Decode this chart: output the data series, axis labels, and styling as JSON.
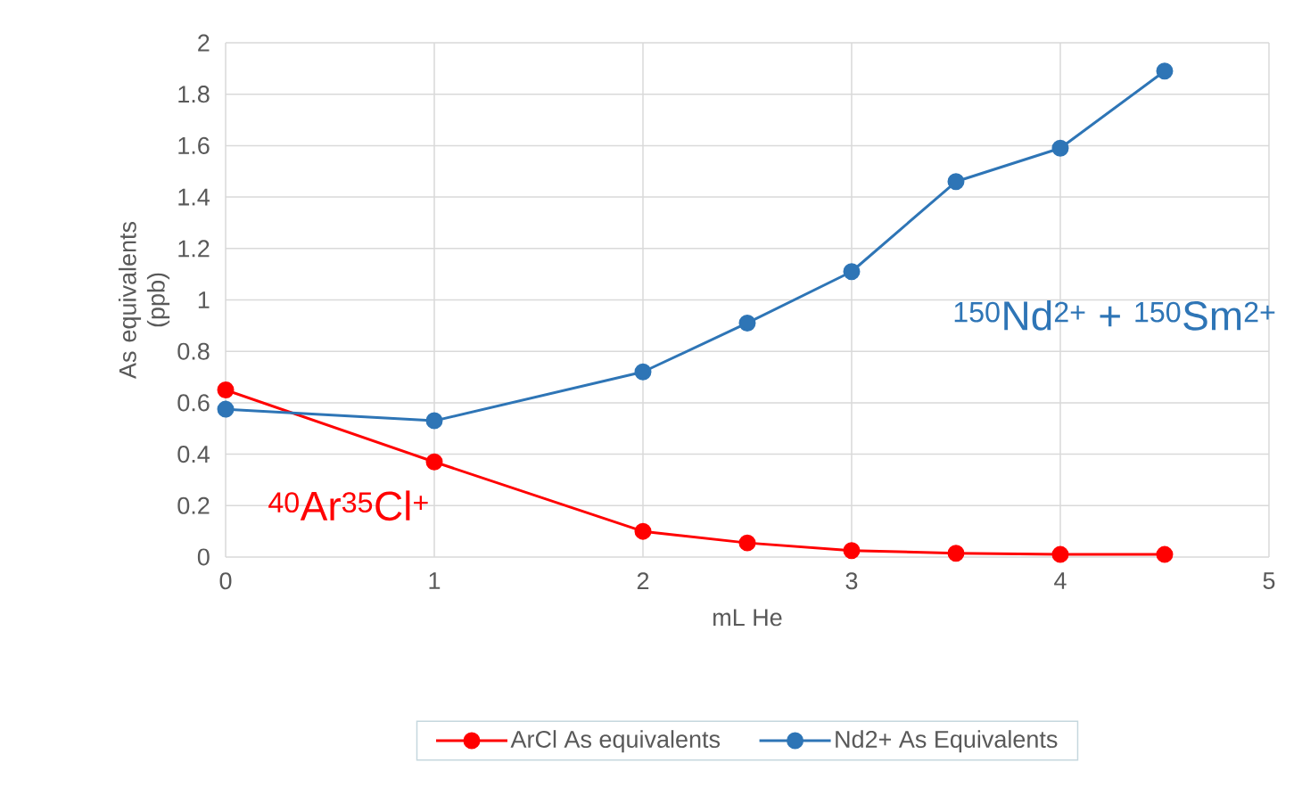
{
  "chart_data": {
    "type": "line",
    "xlabel": "mL He",
    "ylabel": "As equivalents (ppb)",
    "xlim": [
      0,
      5
    ],
    "xticks": [
      0,
      1,
      2,
      3,
      4,
      5
    ],
    "ylim": [
      0,
      2
    ],
    "yticks": [
      0,
      0.2,
      0.4,
      0.6,
      0.8,
      1,
      1.2,
      1.4,
      1.6,
      1.8,
      2
    ],
    "grid": true,
    "legend": "bottom",
    "marker": "circle",
    "line_style": "solid",
    "x": [
      0,
      1,
      2,
      2.5,
      3,
      3.5,
      4,
      4.5
    ],
    "series": [
      {
        "name": "ArCl As equivalents",
        "color": "#ff0000",
        "values": [
          0.65,
          0.37,
          0.1,
          0.055,
          0.025,
          0.015,
          0.01,
          0.01
        ]
      },
      {
        "name": "Nd2+ As Equivalents",
        "color": "#2e75b6",
        "values": [
          0.575,
          0.53,
          0.72,
          0.91,
          1.11,
          1.46,
          1.59,
          1.89
        ]
      }
    ],
    "annotations": [
      "$^{40}$Ar$^{35}$Cl$^{+}$",
      "$^{150}$Nd$^{2+}$ + $^{150}$Sm$^{2+}$"
    ]
  }
}
